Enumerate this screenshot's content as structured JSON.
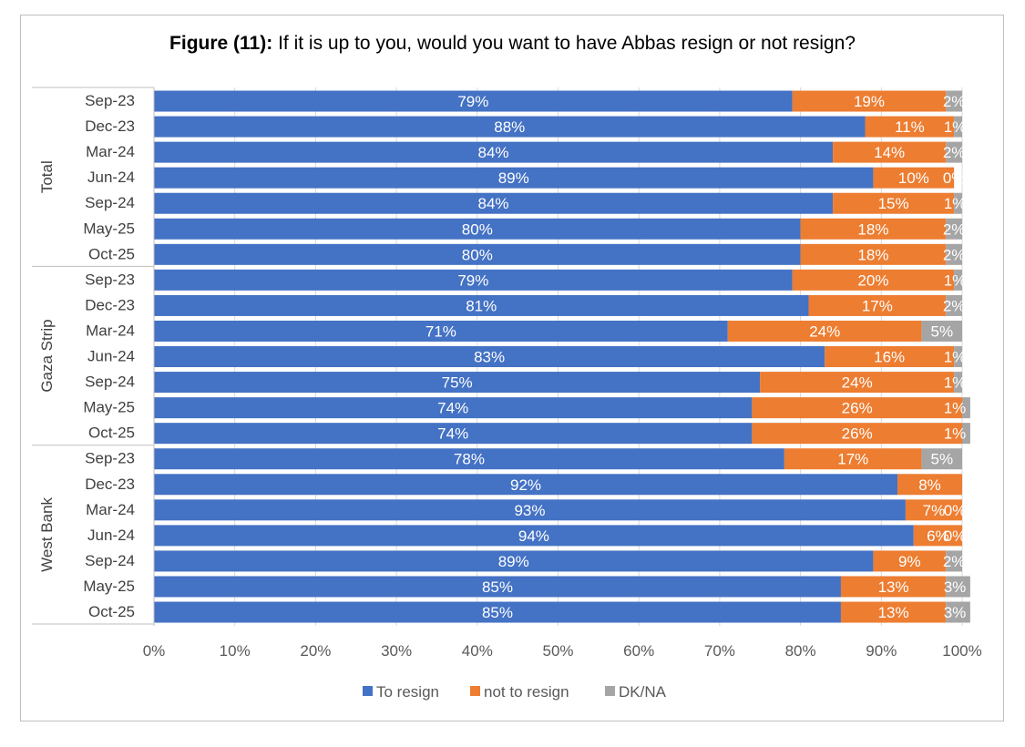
{
  "chart_data": {
    "type": "bar",
    "orientation": "horizontal",
    "stacked": "percent",
    "title_prefix": "Figure (11):",
    "title": "If it is up to you, would you want to have Abbas resign or not resign?",
    "xlim": [
      0,
      100
    ],
    "x_ticks": [
      "0%",
      "10%",
      "20%",
      "30%",
      "40%",
      "50%",
      "60%",
      "70%",
      "80%",
      "90%",
      "100%"
    ],
    "groups": [
      {
        "name": "Total",
        "categories": [
          "Sep-23",
          "Dec-23",
          "Mar-24",
          "Jun-24",
          "Sep-24",
          "May-25",
          "Oct-25"
        ]
      },
      {
        "name": "Gaza Strip",
        "categories": [
          "Sep-23",
          "Dec-23",
          "Mar-24",
          "Jun-24",
          "Sep-24",
          "May-25",
          "Oct-25"
        ]
      },
      {
        "name": "West Bank",
        "categories": [
          "Sep-23",
          "Dec-23",
          "Mar-24",
          "Jun-24",
          "Sep-24",
          "May-25",
          "Oct-25"
        ]
      }
    ],
    "series": [
      {
        "name": "To resign",
        "color": "#4472c4",
        "values": [
          79,
          88,
          84,
          89,
          84,
          80,
          80,
          79,
          81,
          71,
          83,
          75,
          74,
          74,
          78,
          92,
          93,
          94,
          89,
          85,
          85
        ]
      },
      {
        "name": "not to resign",
        "color": "#ed7d31",
        "values": [
          19,
          11,
          14,
          10,
          15,
          18,
          18,
          20,
          17,
          24,
          16,
          24,
          26,
          26,
          17,
          8,
          7,
          6,
          9,
          13,
          13
        ]
      },
      {
        "name": "DK/NA",
        "color": "#a5a5a5",
        "values": [
          2,
          1,
          2,
          0,
          1,
          2,
          2,
          1,
          2,
          5,
          1,
          1,
          1,
          1,
          5,
          0,
          0,
          0,
          2,
          3,
          3
        ]
      }
    ],
    "legend_position": "bottom",
    "grid": true
  }
}
